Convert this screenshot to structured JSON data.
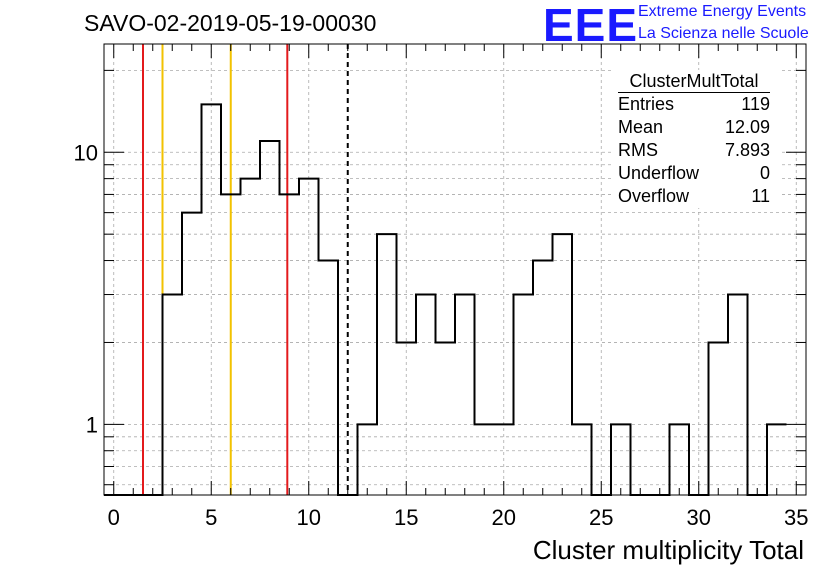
{
  "header": {
    "run_title": "SAVO-02-2019-05-19-00030",
    "logo_text": "EEE",
    "logo_line1": "Extreme Energy Events",
    "logo_line2": "La Scienza nelle Scuole"
  },
  "stats": {
    "name": "ClusterMultTotal",
    "rows": [
      {
        "label": "Entries",
        "value": "119"
      },
      {
        "label": "Mean",
        "value": "12.09"
      },
      {
        "label": "RMS",
        "value": "7.893"
      },
      {
        "label": "Underflow",
        "value": "0"
      },
      {
        "label": "Overflow",
        "value": "11"
      }
    ]
  },
  "colors": {
    "histogram": "#000000",
    "red_lines": "#e31a1c",
    "yellow_lines": "#f2c200",
    "dashed_line": "#000000",
    "grid": "#aaaaaa",
    "logo": "#1a1aff"
  },
  "chart_data": {
    "type": "histogram",
    "xlabel": "Cluster multiplicity Total",
    "ylabel": "",
    "xlim": [
      -0.5,
      35.5
    ],
    "ylim": [
      0.55,
      25
    ],
    "log_y": true,
    "grid": true,
    "bin_width": 1,
    "bin_low_edges": [
      0,
      1,
      2,
      3,
      4,
      5,
      6,
      7,
      8,
      9,
      10,
      11,
      12,
      13,
      14,
      15,
      16,
      17,
      18,
      19,
      20,
      21,
      22,
      23,
      24,
      25,
      26,
      27,
      28,
      29,
      30,
      31,
      32,
      33,
      34
    ],
    "counts": [
      0,
      0,
      0,
      3,
      6,
      15,
      7,
      8,
      11,
      7,
      8,
      4,
      0,
      1,
      5,
      2,
      3,
      2,
      3,
      1,
      1,
      3,
      4,
      5,
      1,
      0,
      1,
      0,
      0,
      1,
      0,
      2,
      3,
      0,
      1
    ],
    "x_ticks": [
      0,
      5,
      10,
      15,
      20,
      25,
      30,
      35
    ],
    "y_ticks": [
      1,
      10
    ],
    "vertical_markers": [
      {
        "x": 1.5,
        "color": "red"
      },
      {
        "x": 8.9,
        "color": "red"
      },
      {
        "x": 2.5,
        "color": "yellow"
      },
      {
        "x": 6.0,
        "color": "yellow"
      },
      {
        "x": 12.0,
        "color": "dashed"
      }
    ]
  }
}
